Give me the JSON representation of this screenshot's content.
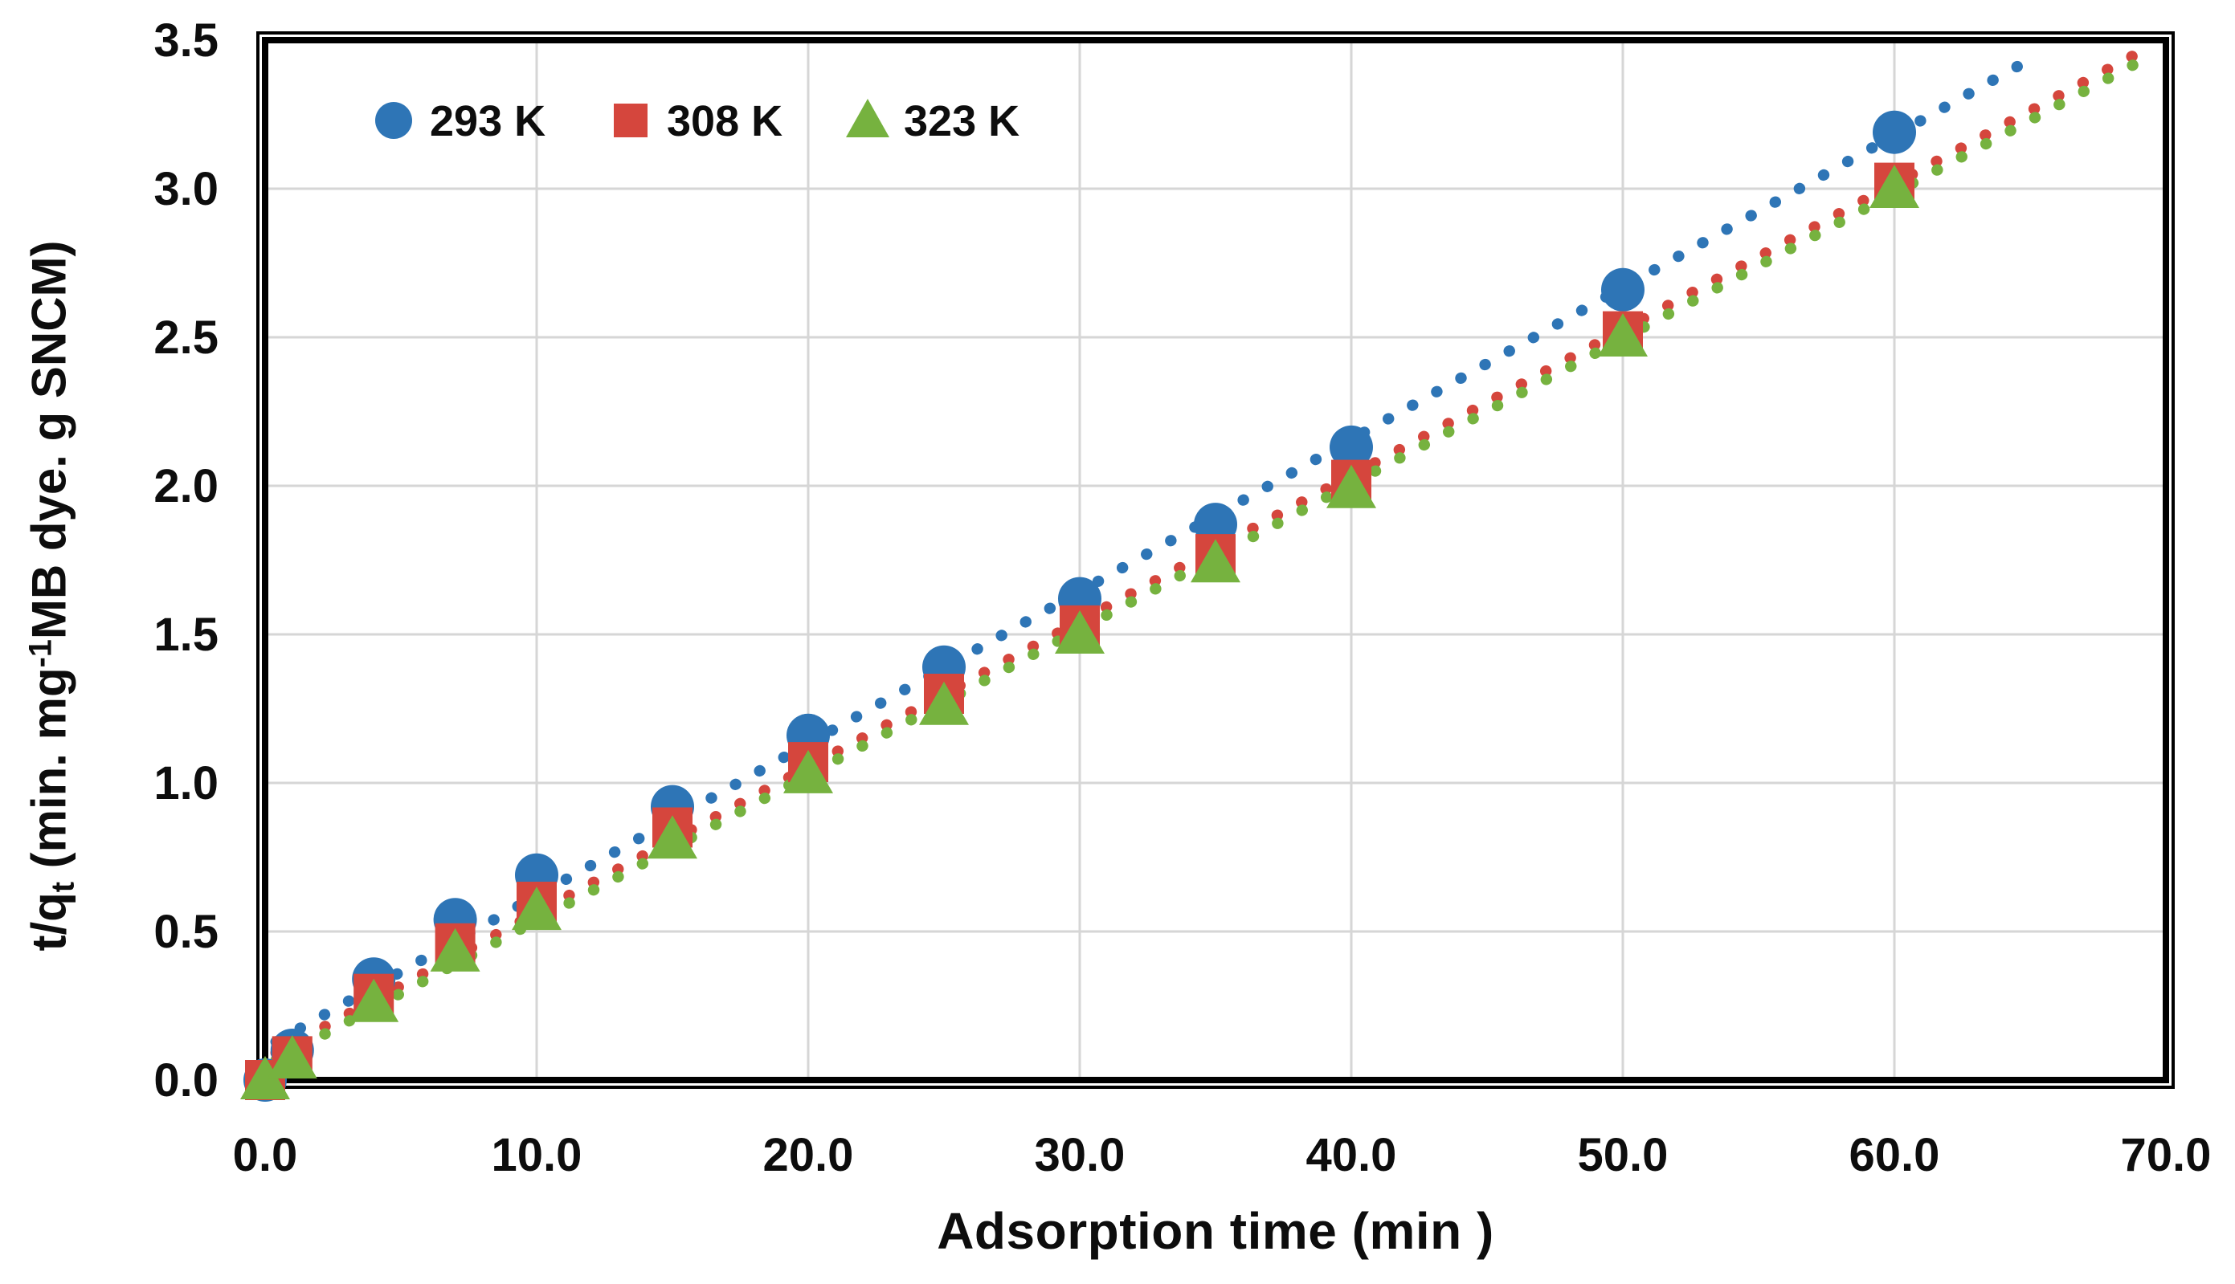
{
  "chart_data": {
    "type": "scatter",
    "title": "",
    "xlabel": "Adsorption time (min )",
    "ylabel": "t/qt (min. mg-1MB dye. g SNCM)",
    "ylabel_parts": {
      "p1": "t/q",
      "sub": "t",
      "p2": " (min. mg",
      "sup": "-1",
      "p3": "MB dye. g SNCM)"
    },
    "xlim": [
      0,
      70
    ],
    "ylim": [
      0,
      3.5
    ],
    "x_ticks": [
      "0.0",
      "10.0",
      "20.0",
      "30.0",
      "40.0",
      "50.0",
      "60.0",
      "70.0"
    ],
    "y_ticks": [
      "0.0",
      "0.5",
      "1.0",
      "1.5",
      "2.0",
      "2.5",
      "3.0",
      "3.5"
    ],
    "grid": true,
    "legend_position": "top-left-inside",
    "trendline_style": "dotted",
    "x": [
      0,
      1,
      4,
      7,
      10,
      15,
      20,
      25,
      30,
      35,
      40,
      50,
      60
    ],
    "series": [
      {
        "name": "293 K",
        "marker": "circle",
        "color": "#2E75B6",
        "values": [
          0.0,
          0.1,
          0.34,
          0.54,
          0.69,
          0.92,
          1.16,
          1.39,
          1.62,
          1.87,
          2.13,
          2.66,
          3.19
        ]
      },
      {
        "name": "308 K",
        "marker": "square",
        "color": "#D5463D",
        "values": [
          0.0,
          0.08,
          0.29,
          0.46,
          0.6,
          0.85,
          1.07,
          1.3,
          1.53,
          1.77,
          2.02,
          2.52,
          3.02
        ]
      },
      {
        "name": "323 K",
        "marker": "triangle",
        "color": "#76B23F",
        "values": [
          0.0,
          0.07,
          0.26,
          0.43,
          0.57,
          0.81,
          1.03,
          1.26,
          1.5,
          1.74,
          1.99,
          2.5,
          3.0
        ]
      }
    ]
  },
  "colors": {
    "background": "#FFFFFF",
    "plot_border": "#000000",
    "gridline": "#D6D6D6",
    "text": "#0D0D0D"
  }
}
